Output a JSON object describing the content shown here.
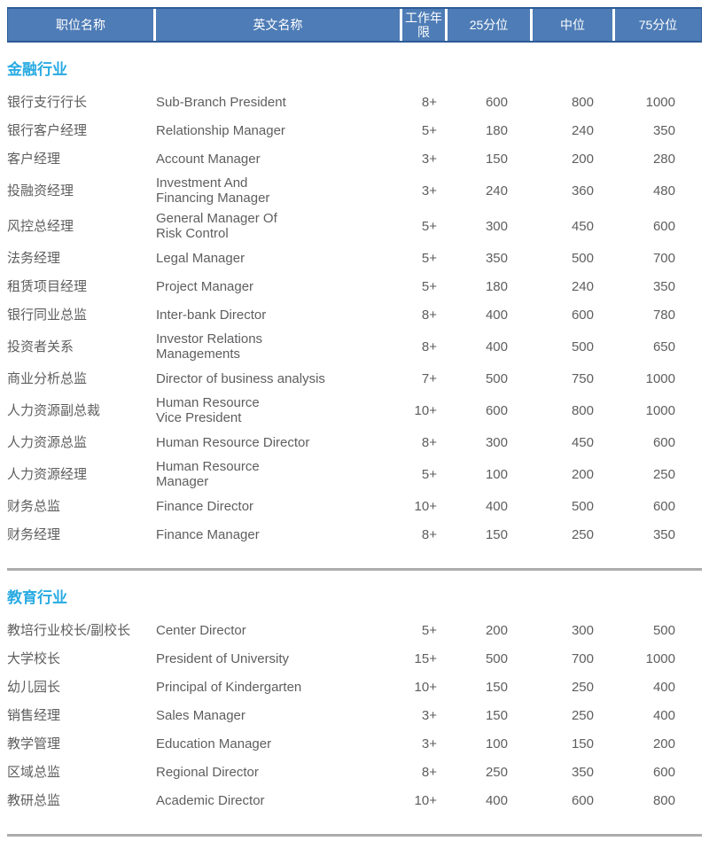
{
  "table": {
    "columns": [
      "职位名称",
      "英文名称",
      "工作年限",
      "25分位",
      "中位",
      "75分位"
    ]
  },
  "colors": {
    "header_bg": "#4e7cb6",
    "header_border": "#2d5a97",
    "header_text": "#ffffff",
    "section_title": "#29abe2",
    "body_text": "#5e5e60",
    "divider": "#acacac"
  },
  "sections": [
    {
      "title": "金融行业",
      "rows": [
        {
          "cn": "银行支行行长",
          "en": "Sub-Branch President",
          "years": "8+",
          "p25": "600",
          "p50": "800",
          "p75": "1000"
        },
        {
          "cn": "银行客户经理",
          "en": "Relationship Manager",
          "years": "5+",
          "p25": "180",
          "p50": "240",
          "p75": "350"
        },
        {
          "cn": "客户经理",
          "en": "Account Manager",
          "years": "3+",
          "p25": "150",
          "p50": "200",
          "p75": "280"
        },
        {
          "cn": "投融资经理",
          "en": "Investment And\nFinancing Manager",
          "years": "3+",
          "p25": "240",
          "p50": "360",
          "p75": "480"
        },
        {
          "cn": "风控总经理",
          "en": "General Manager Of\nRisk Control",
          "years": "5+",
          "p25": "300",
          "p50": "450",
          "p75": "600"
        },
        {
          "cn": "法务经理",
          "en": "Legal Manager",
          "years": "5+",
          "p25": "350",
          "p50": "500",
          "p75": "700"
        },
        {
          "cn": "租赁项目经理",
          "en": "Project Manager",
          "years": "5+",
          "p25": "180",
          "p50": "240",
          "p75": "350"
        },
        {
          "cn": "银行同业总监",
          "en": "Inter-bank Director",
          "years": "8+",
          "p25": "400",
          "p50": "600",
          "p75": "780"
        },
        {
          "cn": "投资者关系",
          "en": "Investor Relations\nManagements",
          "years": "8+",
          "p25": "400",
          "p50": "500",
          "p75": "650"
        },
        {
          "cn": "商业分析总监",
          "en": "Director of business analysis",
          "years": "7+",
          "p25": "500",
          "p50": "750",
          "p75": "1000"
        },
        {
          "cn": "人力资源副总裁",
          "en": "Human Resource\nVice President",
          "years": "10+",
          "p25": "600",
          "p50": "800",
          "p75": "1000"
        },
        {
          "cn": "人力资源总监",
          "en": "Human Resource Director",
          "years": "8+",
          "p25": "300",
          "p50": "450",
          "p75": "600"
        },
        {
          "cn": "人力资源经理",
          "en": "Human Resource\nManager",
          "years": "5+",
          "p25": "100",
          "p50": "200",
          "p75": "250"
        },
        {
          "cn": "财务总监",
          "en": "Finance Director",
          "years": "10+",
          "p25": "400",
          "p50": "500",
          "p75": "600"
        },
        {
          "cn": "财务经理",
          "en": "Finance Manager",
          "years": "8+",
          "p25": "150",
          "p50": "250",
          "p75": "350"
        }
      ]
    },
    {
      "title": "教育行业",
      "rows": [
        {
          "cn": "教培行业校长/副校长",
          "en": "Center Director",
          "years": "5+",
          "p25": "200",
          "p50": "300",
          "p75": "500"
        },
        {
          "cn": "大学校长",
          "en": "President of University",
          "years": "15+",
          "p25": "500",
          "p50": "700",
          "p75": "1000"
        },
        {
          "cn": "幼儿园长",
          "en": "Principal of Kindergarten",
          "years": "10+",
          "p25": "150",
          "p50": "250",
          "p75": "400"
        },
        {
          "cn": "销售经理",
          "en": "Sales Manager",
          "years": "3+",
          "p25": "150",
          "p50": "250",
          "p75": "400"
        },
        {
          "cn": "教学管理",
          "en": "Education Manager",
          "years": "3+",
          "p25": "100",
          "p50": "150",
          "p75": "200"
        },
        {
          "cn": "区域总监",
          "en": "Regional Director",
          "years": "8+",
          "p25": "250",
          "p50": "350",
          "p75": "600"
        },
        {
          "cn": "教研总监",
          "en": "Academic Director",
          "years": "10+",
          "p25": "400",
          "p50": "600",
          "p75": "800"
        }
      ]
    }
  ]
}
